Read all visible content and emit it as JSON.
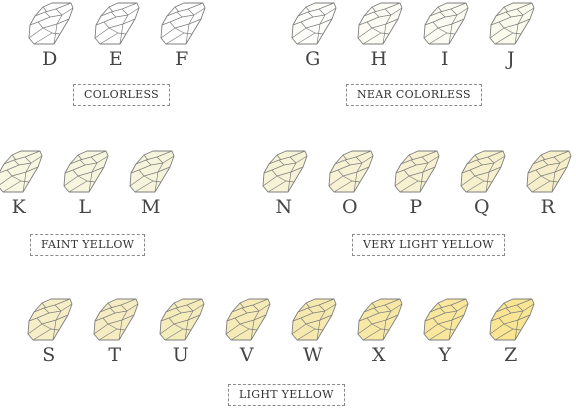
{
  "rows": [
    {
      "groups": [
        {
          "label": "COLORLESS",
          "grades": [
            {
              "letter": "D",
              "color": "#ffffff"
            },
            {
              "letter": "E",
              "color": "#ffffff"
            },
            {
              "letter": "F",
              "color": "#ffffff"
            }
          ]
        },
        {
          "label": "NEAR COLORLESS",
          "grades": [
            {
              "letter": "G",
              "color": "#fdfdf9"
            },
            {
              "letter": "H",
              "color": "#fcfcf5"
            },
            {
              "letter": "I",
              "color": "#fbfbf1"
            },
            {
              "letter": "J",
              "color": "#fafaed"
            }
          ]
        }
      ]
    },
    {
      "groups": [
        {
          "label": "FAINT YELLOW",
          "grades": [
            {
              "letter": "K",
              "color": "#f8f7e2"
            },
            {
              "letter": "L",
              "color": "#f7f5de"
            },
            {
              "letter": "M",
              "color": "#f6f4da"
            }
          ]
        },
        {
          "label": "VERY LIGHT YELLOW",
          "grades": [
            {
              "letter": "N",
              "color": "#f6f3d6"
            },
            {
              "letter": "O",
              "color": "#f6f2d3"
            },
            {
              "letter": "P",
              "color": "#f6f1d0"
            },
            {
              "letter": "Q",
              "color": "#f6f0cd"
            },
            {
              "letter": "R",
              "color": "#f6efca"
            }
          ]
        }
      ]
    },
    {
      "groups": [
        {
          "label": "LIGHT YELLOW",
          "grades": [
            {
              "letter": "S",
              "color": "#f5eec6"
            },
            {
              "letter": "T",
              "color": "#f5edc1"
            },
            {
              "letter": "U",
              "color": "#f5ecbc"
            },
            {
              "letter": "V",
              "color": "#f6ebb6"
            },
            {
              "letter": "W",
              "color": "#f6e9b0"
            },
            {
              "letter": "X",
              "color": "#f7e8a6"
            },
            {
              "letter": "Y",
              "color": "#f8e79d"
            },
            {
              "letter": "Z",
              "color": "#f9e592"
            }
          ]
        }
      ]
    }
  ]
}
